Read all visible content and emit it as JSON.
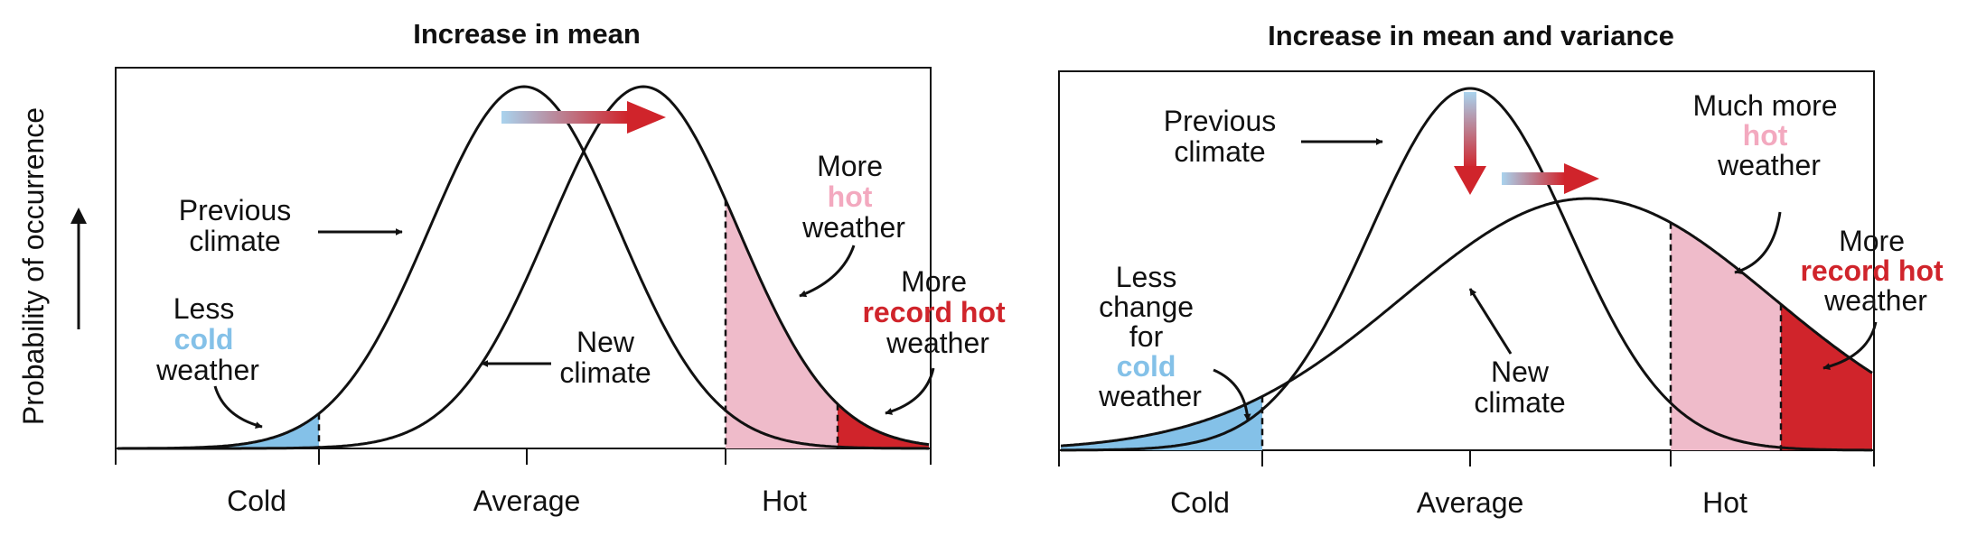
{
  "colors": {
    "cold": "#84c1e8",
    "hot": "#efbbca",
    "record_hot": "#d0242b",
    "hot_text": "#f3a9bf",
    "record_hot_text": "#d0242b",
    "cold_text": "#84c1e8"
  },
  "y_axis": {
    "label": "Probability of occurrence"
  },
  "panels": [
    {
      "title": "Increase in mean",
      "ticks": [
        "Cold",
        "Average",
        "Hot"
      ],
      "labels": {
        "previous": [
          "Previous",
          "climate"
        ],
        "new": [
          "New",
          "climate"
        ],
        "cold": {
          "line1": "Less",
          "line2_colored": "cold",
          "line3": "weather"
        },
        "hot": {
          "line1": "More",
          "line2_colored": "hot",
          "line3": "weather"
        },
        "record": {
          "line1": "More",
          "line2_colored": "record hot",
          "line3": "weather"
        }
      }
    },
    {
      "title": "Increase in mean and variance",
      "ticks": [
        "Cold",
        "Average",
        "Hot"
      ],
      "labels": {
        "previous": [
          "Previous",
          "climate"
        ],
        "new": [
          "New",
          "climate"
        ],
        "cold": {
          "line1": "Less",
          "line2": "change",
          "line3": "for",
          "line4_colored": "cold",
          "line5": "weather"
        },
        "hot": {
          "line1": "Much more",
          "line2_colored": "hot",
          "line3": "weather"
        },
        "record": {
          "line1": "More",
          "line2_colored": "record hot",
          "line3": "weather"
        }
      }
    }
  ]
}
